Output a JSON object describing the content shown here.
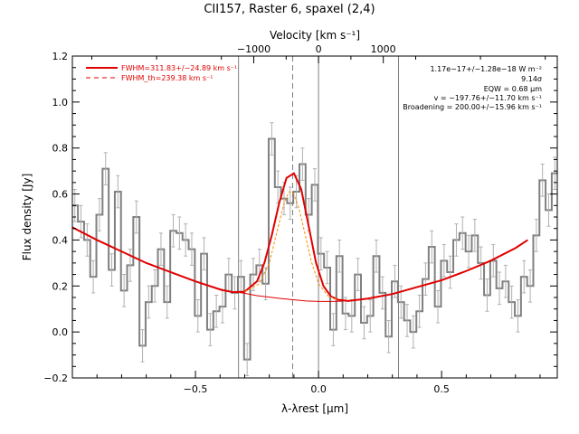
{
  "chart_data": {
    "type": "line",
    "title": "CII157, Raster 6, spaxel (2,4)",
    "xlabel": "λ-λrest [μm]",
    "ylabel": "Flux density [Jy]",
    "top_axis_label": "Velocity [km s⁻¹]",
    "xlim": [
      -1.0,
      0.97
    ],
    "ylim": [
      -0.2,
      1.2
    ],
    "x_ticks": [
      -0.5,
      0.0,
      0.5
    ],
    "x_tick_labels": [
      "−0.5",
      "0.0",
      "0.5"
    ],
    "y_ticks": [
      -0.2,
      0.0,
      0.2,
      0.4,
      0.6,
      0.8,
      1.0,
      1.2
    ],
    "y_tick_labels": [
      "−0.2",
      "0.0",
      "0.2",
      "0.4",
      "0.6",
      "0.8",
      "1.0",
      "1.2"
    ],
    "top_ticks": [
      -1000,
      0,
      1000
    ],
    "top_tick_labels": [
      "−1000",
      "0",
      "1000"
    ],
    "velocity_per_micron": 3800,
    "vertical_lines_solid": [
      -0.325,
      0.0,
      0.325
    ],
    "vertical_line_dashed": -0.105,
    "legend": {
      "placement": "top-left",
      "entries": [
        {
          "label": "FWHM=311.83+/−24.89 km s⁻¹",
          "style": "solid",
          "color": "#e00000"
        },
        {
          "label": "FWHM_th=239.38 km s⁻¹",
          "style": "dashed",
          "color": "#e00000"
        }
      ]
    },
    "annotations": [
      "1.17e−17+/−1.28e−18 W m⁻²",
      "9.14σ",
      "EQW = 0.68 μm",
      "v = −197.76+/−11.70 km s⁻¹",
      "Broadening = 200.00+/−15.96 km s⁻¹"
    ],
    "series": [
      {
        "style": "step",
        "color": "#808080",
        "x": [
          -0.99,
          -0.965,
          -0.94,
          -0.915,
          -0.89,
          -0.865,
          -0.84,
          -0.815,
          -0.79,
          -0.765,
          -0.74,
          -0.715,
          -0.69,
          -0.665,
          -0.64,
          -0.615,
          -0.59,
          -0.565,
          -0.54,
          -0.515,
          -0.49,
          -0.465,
          -0.44,
          -0.415,
          -0.39,
          -0.365,
          -0.34,
          -0.315,
          -0.29,
          -0.265,
          -0.24,
          -0.215,
          -0.19,
          -0.165,
          -0.14,
          -0.115,
          -0.09,
          -0.065,
          -0.04,
          -0.015,
          0.01,
          0.035,
          0.06,
          0.085,
          0.11,
          0.135,
          0.16,
          0.185,
          0.21,
          0.235,
          0.26,
          0.285,
          0.31,
          0.335,
          0.36,
          0.385,
          0.41,
          0.435,
          0.46,
          0.485,
          0.51,
          0.535,
          0.56,
          0.585,
          0.61,
          0.635,
          0.66,
          0.685,
          0.71,
          0.735,
          0.76,
          0.785,
          0.81,
          0.835,
          0.86,
          0.885,
          0.91,
          0.935,
          0.96
        ],
        "values": [
          0.55,
          0.48,
          0.4,
          0.24,
          0.51,
          0.71,
          0.27,
          0.61,
          0.18,
          0.29,
          0.5,
          -0.06,
          0.13,
          0.2,
          0.36,
          0.13,
          0.44,
          0.43,
          0.4,
          0.36,
          0.07,
          0.34,
          0.01,
          0.09,
          0.11,
          0.25,
          0.17,
          0.24,
          -0.12,
          0.25,
          0.29,
          0.21,
          0.84,
          0.63,
          0.58,
          0.56,
          0.61,
          0.73,
          0.51,
          0.64,
          0.34,
          0.28,
          0.01,
          0.33,
          0.08,
          0.07,
          0.25,
          0.04,
          0.07,
          0.33,
          0.17,
          -0.02,
          0.22,
          0.13,
          0.05,
          0.0,
          0.09,
          0.23,
          0.37,
          0.11,
          0.31,
          0.26,
          0.4,
          0.43,
          0.35,
          0.42,
          0.3,
          0.16,
          0.31,
          0.19,
          0.22,
          0.13,
          0.07,
          0.24,
          0.2,
          0.42,
          0.66,
          0.53,
          0.69
        ],
        "errors": 0.07
      },
      {
        "style": "solid",
        "color": "#e00000",
        "x": [
          -1.0,
          -0.9,
          -0.8,
          -0.7,
          -0.6,
          -0.5,
          -0.4,
          -0.35,
          -0.3,
          -0.25,
          -0.22,
          -0.19,
          -0.16,
          -0.13,
          -0.1,
          -0.07,
          -0.04,
          -0.01,
          0.02,
          0.05,
          0.08,
          0.12,
          0.2,
          0.3,
          0.4,
          0.5,
          0.6,
          0.7,
          0.8,
          0.85
        ],
        "values": [
          0.455,
          0.4,
          0.35,
          0.3,
          0.26,
          0.22,
          0.185,
          0.173,
          0.175,
          0.22,
          0.3,
          0.42,
          0.56,
          0.67,
          0.69,
          0.62,
          0.46,
          0.3,
          0.2,
          0.155,
          0.14,
          0.135,
          0.145,
          0.165,
          0.195,
          0.225,
          0.265,
          0.31,
          0.365,
          0.4
        ]
      },
      {
        "style": "thin",
        "color": "#e00000",
        "x": [
          -0.32,
          -0.25,
          -0.15,
          -0.05,
          0.0,
          0.05,
          0.1
        ],
        "values": [
          0.172,
          0.158,
          0.145,
          0.135,
          0.133,
          0.133,
          0.134
        ]
      },
      {
        "style": "thin-dashed",
        "color": "#ff8c00",
        "x": [
          -0.3,
          -0.24,
          -0.2,
          -0.17,
          -0.14,
          -0.12,
          -0.1,
          -0.08,
          -0.06,
          -0.03,
          0.0,
          0.04,
          0.08
        ],
        "values": [
          0.175,
          0.21,
          0.3,
          0.43,
          0.56,
          0.61,
          0.6,
          0.54,
          0.45,
          0.31,
          0.21,
          0.155,
          0.14
        ]
      }
    ]
  }
}
